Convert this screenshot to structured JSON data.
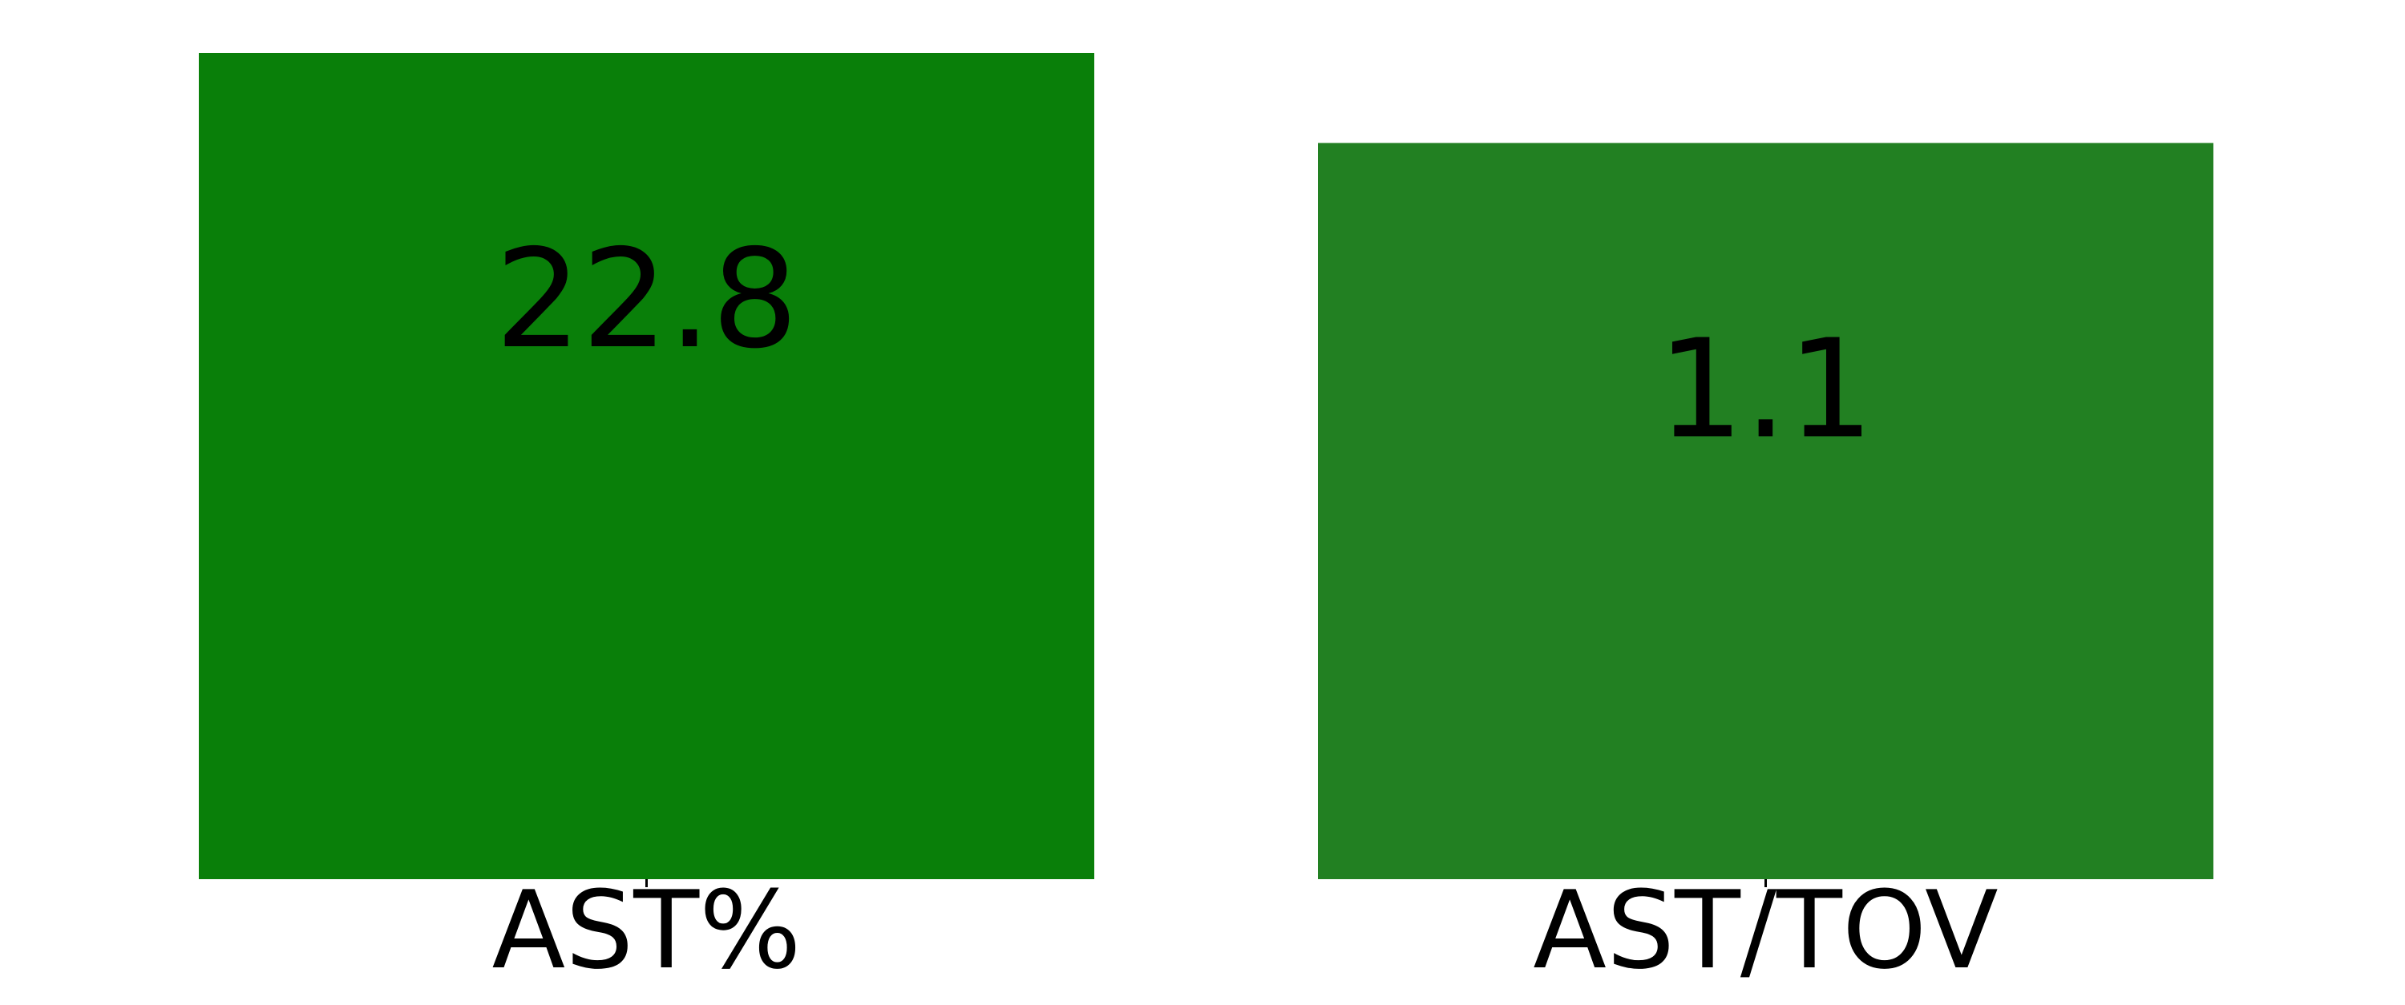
{
  "chart_data": {
    "type": "bar",
    "categories": [
      "AST%",
      "AST/TOV"
    ],
    "values": [
      22.8,
      1.1
    ],
    "value_labels": [
      "22.8",
      "1.1"
    ],
    "colors": [
      "#097f09",
      "#228022"
    ],
    "grid": false,
    "legend": "none"
  }
}
